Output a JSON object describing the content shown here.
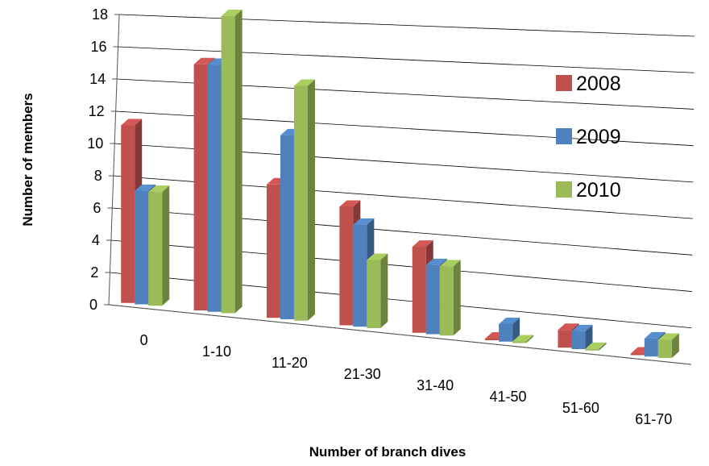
{
  "chart_data": {
    "type": "bar",
    "title": "",
    "xlabel": "Number of branch dives",
    "ylabel": "Number of members",
    "ylim": [
      0,
      18
    ],
    "yticks": [
      0,
      2,
      4,
      6,
      8,
      10,
      12,
      14,
      16,
      18
    ],
    "grid": true,
    "three_d": true,
    "legend_position": "right",
    "categories": [
      "0",
      "1-10",
      "11-20",
      "21-30",
      "31-40",
      "41-50",
      "51-60",
      "61-70"
    ],
    "series": [
      {
        "name": "2008",
        "color": "#c0504d",
        "values": [
          11,
          15,
          8,
          7,
          5,
          0,
          1,
          0
        ]
      },
      {
        "name": "2009",
        "color": "#4f81bd",
        "values": [
          7,
          15,
          11,
          6,
          4,
          1,
          1,
          1
        ]
      },
      {
        "name": "2010",
        "color": "#9bbb59",
        "values": [
          7,
          18,
          14,
          4,
          4,
          0,
          0,
          1
        ]
      }
    ]
  }
}
